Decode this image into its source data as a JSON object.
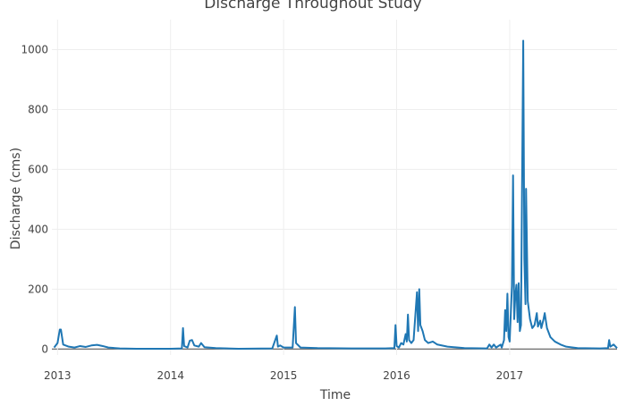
{
  "chart_data": {
    "type": "line",
    "title": "Discharge Throughout Study",
    "xlabel": "Time",
    "ylabel": "Discharge (cms)",
    "xlim": [
      2012.95,
      2017.95
    ],
    "xticks": [
      2013,
      2014,
      2015,
      2016,
      2017
    ],
    "ylim": [
      -20,
      1100
    ],
    "yticks": [
      0,
      200,
      400,
      600,
      800,
      1000
    ],
    "grid": true,
    "series": [
      {
        "name": "Discharge",
        "color": "#1f77b4",
        "x": [
          2012.97,
          2013.0,
          2013.02,
          2013.03,
          2013.05,
          2013.1,
          2013.15,
          2013.2,
          2013.25,
          2013.3,
          2013.35,
          2013.4,
          2013.45,
          2013.55,
          2013.7,
          2014.0,
          2014.1,
          2014.11,
          2014.12,
          2014.15,
          2014.17,
          2014.19,
          2014.21,
          2014.25,
          2014.27,
          2014.3,
          2014.4,
          2014.6,
          2014.9,
          2014.94,
          2014.95,
          2014.97,
          2015.0,
          2015.08,
          2015.1,
          2015.11,
          2015.15,
          2015.3,
          2015.6,
          2015.9,
          2015.98,
          2015.99,
          2016.0,
          2016.02,
          2016.04,
          2016.06,
          2016.08,
          2016.09,
          2016.1,
          2016.11,
          2016.13,
          2016.15,
          2016.18,
          2016.19,
          2016.2,
          2016.21,
          2016.23,
          2016.25,
          2016.28,
          2016.32,
          2016.36,
          2016.45,
          2016.6,
          2016.8,
          2016.82,
          2016.84,
          2016.86,
          2016.88,
          2016.92,
          2016.93,
          2016.95,
          2016.96,
          2016.97,
          2016.98,
          2016.99,
          2017.0,
          2017.02,
          2017.03,
          2017.04,
          2017.05,
          2017.06,
          2017.07,
          2017.08,
          2017.09,
          2017.1,
          2017.11,
          2017.12,
          2017.13,
          2017.14,
          2017.145,
          2017.16,
          2017.18,
          2017.2,
          2017.22,
          2017.24,
          2017.25,
          2017.27,
          2017.28,
          2017.3,
          2017.31,
          2017.33,
          2017.36,
          2017.4,
          2017.45,
          2017.5,
          2017.6,
          2017.8,
          2017.87,
          2017.88,
          2017.89,
          2017.92,
          2017.95
        ],
        "values": [
          5,
          20,
          65,
          65,
          15,
          8,
          5,
          10,
          7,
          12,
          14,
          10,
          5,
          2,
          1,
          1,
          2,
          70,
          10,
          5,
          28,
          30,
          12,
          8,
          20,
          6,
          3,
          1,
          2,
          45,
          8,
          12,
          5,
          5,
          140,
          20,
          5,
          3,
          2,
          2,
          3,
          80,
          10,
          5,
          20,
          15,
          50,
          25,
          115,
          30,
          20,
          30,
          190,
          60,
          200,
          80,
          60,
          30,
          20,
          25,
          15,
          8,
          3,
          2,
          15,
          5,
          15,
          5,
          15,
          5,
          30,
          130,
          60,
          185,
          40,
          25,
          210,
          580,
          100,
          180,
          215,
          90,
          220,
          60,
          80,
          560,
          1030,
          300,
          150,
          535,
          160,
          100,
          70,
          80,
          120,
          75,
          95,
          70,
          100,
          120,
          70,
          40,
          25,
          15,
          8,
          3,
          2,
          3,
          30,
          8,
          15,
          3
        ]
      }
    ]
  }
}
